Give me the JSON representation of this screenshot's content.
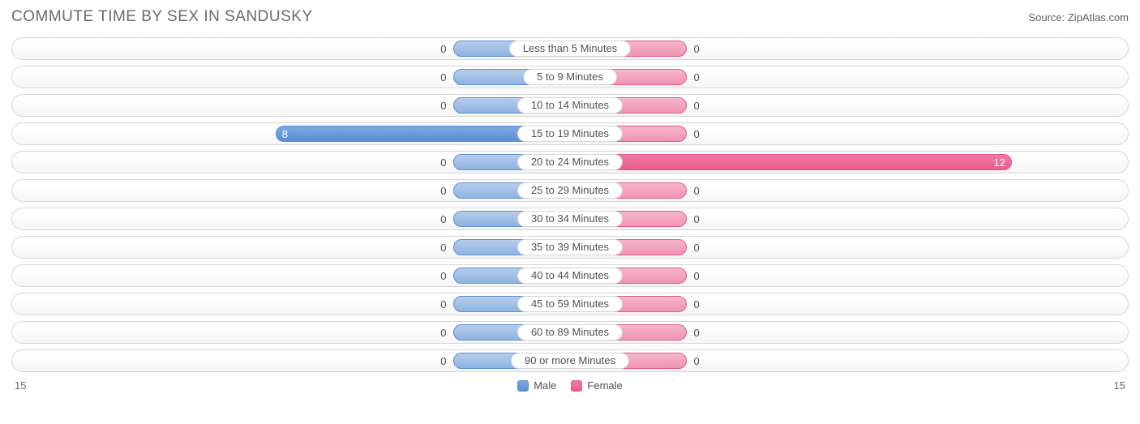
{
  "title": "COMMUTE TIME BY SEX IN SANDUSKY",
  "source": "Source: ZipAtlas.com",
  "axis_max": 15,
  "axis_left_label": "15",
  "axis_right_label": "15",
  "colors": {
    "male_fill_top": "#b6cdeb",
    "male_fill_bottom": "#8fb3e0",
    "male_border": "#5a8fd6",
    "male_solid_top": "#7ca9dd",
    "male_solid_bottom": "#5b8fd4",
    "female_fill_top": "#f6b6cc",
    "female_fill_bottom": "#f193b3",
    "female_border": "#e65a85",
    "female_solid_top": "#ef7ba1",
    "female_solid_bottom": "#e95c88",
    "row_border": "#d6d6d6",
    "text": "#525252",
    "title_text": "#6b6b6b",
    "bg": "#ffffff"
  },
  "min_bar_percent": 10.5,
  "legend": {
    "male": "Male",
    "female": "Female"
  },
  "categories": [
    {
      "label": "Less than 5 Minutes",
      "male": 0,
      "female": 0
    },
    {
      "label": "5 to 9 Minutes",
      "male": 0,
      "female": 0
    },
    {
      "label": "10 to 14 Minutes",
      "male": 0,
      "female": 0
    },
    {
      "label": "15 to 19 Minutes",
      "male": 8,
      "female": 0
    },
    {
      "label": "20 to 24 Minutes",
      "male": 0,
      "female": 12
    },
    {
      "label": "25 to 29 Minutes",
      "male": 0,
      "female": 0
    },
    {
      "label": "30 to 34 Minutes",
      "male": 0,
      "female": 0
    },
    {
      "label": "35 to 39 Minutes",
      "male": 0,
      "female": 0
    },
    {
      "label": "40 to 44 Minutes",
      "male": 0,
      "female": 0
    },
    {
      "label": "45 to 59 Minutes",
      "male": 0,
      "female": 0
    },
    {
      "label": "60 to 89 Minutes",
      "male": 0,
      "female": 0
    },
    {
      "label": "90 or more Minutes",
      "male": 0,
      "female": 0
    }
  ]
}
